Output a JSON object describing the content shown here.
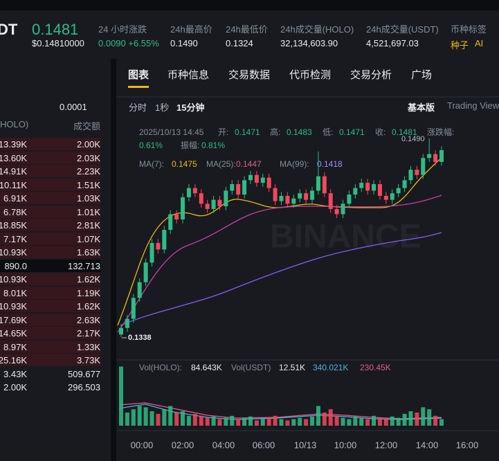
{
  "header": {
    "pair": "DT",
    "price": "0.1481",
    "price_usd": "$0.14810000",
    "stats": [
      {
        "label": "24 小时涨跌",
        "value": "0.0090 +6.55%"
      },
      {
        "label": "24h最高价",
        "value": "0.1490"
      },
      {
        "label": "24h最低价",
        "value": "0.1324"
      },
      {
        "label": "24h成交量(HOLO)",
        "value": "32,134,603.90"
      },
      {
        "label": "24h成交量(USDT)",
        "value": "4,521,697.03"
      }
    ],
    "tag_label": "币种标签",
    "tags": [
      "种子",
      "AI"
    ]
  },
  "orderbook": {
    "precision": "0.0001",
    "columns": [
      "HOLO)",
      "成交额"
    ],
    "asks": [
      [
        "13.39K",
        "2.00K"
      ],
      [
        "13.60K",
        "2.03K"
      ],
      [
        "14.91K",
        "2.23K"
      ],
      [
        "10.11K",
        "1.51K"
      ],
      [
        "6.91K",
        "1.03K"
      ],
      [
        "6.78K",
        "1.01K"
      ],
      [
        "18.85K",
        "2.81K"
      ],
      [
        "7.17K",
        "1.07K"
      ],
      [
        "10.93K",
        "1.63K"
      ]
    ],
    "mid": [
      "890.0",
      "132.713"
    ],
    "bids": [
      [
        "10.93K",
        "1.62K"
      ],
      [
        "8.01K",
        "1.19K"
      ],
      [
        "10.93K",
        "1.62K"
      ],
      [
        "17.69K",
        "2.63K"
      ],
      [
        "14.65K",
        "2.17K"
      ],
      [
        "8.97K",
        "1.33K"
      ],
      [
        "25.16K",
        "3.73K"
      ],
      [
        "3.43K",
        "509.677"
      ],
      [
        "2.00K",
        "296.503"
      ]
    ]
  },
  "tabs": [
    "图表",
    "币种信息",
    "交易数据",
    "代币检测",
    "交易分析",
    "广场"
  ],
  "toolbar": {
    "intervals": [
      "分时",
      "1秒",
      "15分钟"
    ],
    "modes": [
      "基本版",
      "Trading View"
    ]
  },
  "info": {
    "time": "2025/10/13 14:45",
    "fields": [
      [
        "开:",
        "0.1471"
      ],
      [
        "高:",
        "0.1483"
      ],
      [
        "低:",
        "0.1471"
      ],
      [
        "收:",
        "0.1481"
      ],
      [
        "涨跌幅:",
        "0.61%"
      ],
      [
        "振幅:",
        "0.81%"
      ]
    ]
  },
  "ma": [
    [
      "MA(7):",
      "0.1475"
    ],
    [
      "MA(25):",
      "0.1447"
    ],
    [
      "MA(99):",
      "0.1418"
    ]
  ],
  "vol_legend": [
    "Vol(HOLO):",
    "84.643K",
    "Vol(USDT)",
    "12.51K",
    "340.021K",
    "230.45K"
  ],
  "watermark": "BINANCE",
  "high_label": "0.1490",
  "low_label": "0.1338",
  "x_labels": [
    "00:00",
    "02:00",
    "04:00",
    "06:00",
    "10/13",
    "10:00",
    "12:00",
    "14:00",
    "16:00"
  ],
  "kline": {
    "type": "candlestick",
    "ylim": [
      0.132,
      0.15
    ],
    "vol_ylim": [
      0,
      100
    ],
    "ohlc": [
      [
        0.134,
        0.1348,
        0.1338,
        0.1345
      ],
      [
        0.1345,
        0.1355,
        0.1342,
        0.1352
      ],
      [
        0.1352,
        0.1371,
        0.1349,
        0.1368
      ],
      [
        0.1368,
        0.1383,
        0.1365,
        0.138
      ],
      [
        0.138,
        0.1398,
        0.1377,
        0.1395
      ],
      [
        0.1395,
        0.1413,
        0.1392,
        0.141
      ],
      [
        0.141,
        0.1413,
        0.1402,
        0.1405
      ],
      [
        0.1405,
        0.1423,
        0.1402,
        0.142
      ],
      [
        0.142,
        0.1435,
        0.1417,
        0.1432
      ],
      [
        0.1432,
        0.1435,
        0.1425,
        0.1428
      ],
      [
        0.1428,
        0.1448,
        0.1425,
        0.1445
      ],
      [
        0.1445,
        0.1455,
        0.1442,
        0.1452
      ],
      [
        0.1452,
        0.1455,
        0.1445,
        0.1448
      ],
      [
        0.1448,
        0.1451,
        0.1437,
        0.144
      ],
      [
        0.144,
        0.1443,
        0.1433,
        0.1436
      ],
      [
        0.1436,
        0.1446,
        0.1433,
        0.1443
      ],
      [
        0.1443,
        0.1446,
        0.1435,
        0.1438
      ],
      [
        0.1438,
        0.1453,
        0.1435,
        0.145
      ],
      [
        0.145,
        0.1458,
        0.1447,
        0.1455
      ],
      [
        0.1455,
        0.1458,
        0.1444,
        0.1447
      ],
      [
        0.1447,
        0.1461,
        0.1444,
        0.1458
      ],
      [
        0.1458,
        0.1465,
        0.1455,
        0.1462
      ],
      [
        0.1462,
        0.1465,
        0.1453,
        0.1456
      ],
      [
        0.1456,
        0.1463,
        0.1453,
        0.146
      ],
      [
        0.146,
        0.1463,
        0.1449,
        0.1452
      ],
      [
        0.1452,
        0.1455,
        0.1439,
        0.1442
      ],
      [
        0.1442,
        0.1449,
        0.1439,
        0.1446
      ],
      [
        0.1446,
        0.1449,
        0.1437,
        0.144
      ],
      [
        0.144,
        0.1447,
        0.1437,
        0.1444
      ],
      [
        0.1444,
        0.1451,
        0.1441,
        0.1448
      ],
      [
        0.1448,
        0.1451,
        0.144,
        0.1443
      ],
      [
        0.1443,
        0.1453,
        0.144,
        0.145
      ],
      [
        0.145,
        0.148,
        0.1447,
        0.1461
      ],
      [
        0.1461,
        0.1464,
        0.1445,
        0.1448
      ],
      [
        0.1448,
        0.1451,
        0.1433,
        0.1436
      ],
      [
        0.1436,
        0.1439,
        0.1429,
        0.1432
      ],
      [
        0.1432,
        0.1443,
        0.1429,
        0.144
      ],
      [
        0.144,
        0.145,
        0.1437,
        0.1447
      ],
      [
        0.1447,
        0.1455,
        0.1444,
        0.1452
      ],
      [
        0.1452,
        0.1459,
        0.1449,
        0.1456
      ],
      [
        0.1456,
        0.1459,
        0.1447,
        0.145
      ],
      [
        0.145,
        0.1458,
        0.1447,
        0.1455
      ],
      [
        0.1455,
        0.1458,
        0.1443,
        0.1446
      ],
      [
        0.1446,
        0.1449,
        0.144,
        0.1443
      ],
      [
        0.1443,
        0.1451,
        0.144,
        0.1448
      ],
      [
        0.1448,
        0.1455,
        0.1445,
        0.1452
      ],
      [
        0.1452,
        0.1461,
        0.1449,
        0.1458
      ],
      [
        0.1458,
        0.1469,
        0.1455,
        0.1466
      ],
      [
        0.1466,
        0.1469,
        0.1459,
        0.1462
      ],
      [
        0.1462,
        0.1478,
        0.1459,
        0.1475
      ],
      [
        0.1475,
        0.149,
        0.1472,
        0.1478
      ],
      [
        0.1478,
        0.1481,
        0.1469,
        0.1472
      ],
      [
        0.1472,
        0.1484,
        0.1469,
        0.1481
      ]
    ],
    "volumes": [
      90,
      20,
      25,
      30,
      28,
      22,
      18,
      25,
      30,
      20,
      22,
      15,
      18,
      15,
      12,
      14,
      10,
      12,
      15,
      10,
      12,
      14,
      8,
      10,
      12,
      15,
      10,
      8,
      10,
      12,
      10,
      14,
      30,
      20,
      25,
      15,
      12,
      10,
      14,
      12,
      10,
      15,
      12,
      10,
      14,
      12,
      18,
      22,
      20,
      28,
      25,
      15,
      10
    ]
  }
}
